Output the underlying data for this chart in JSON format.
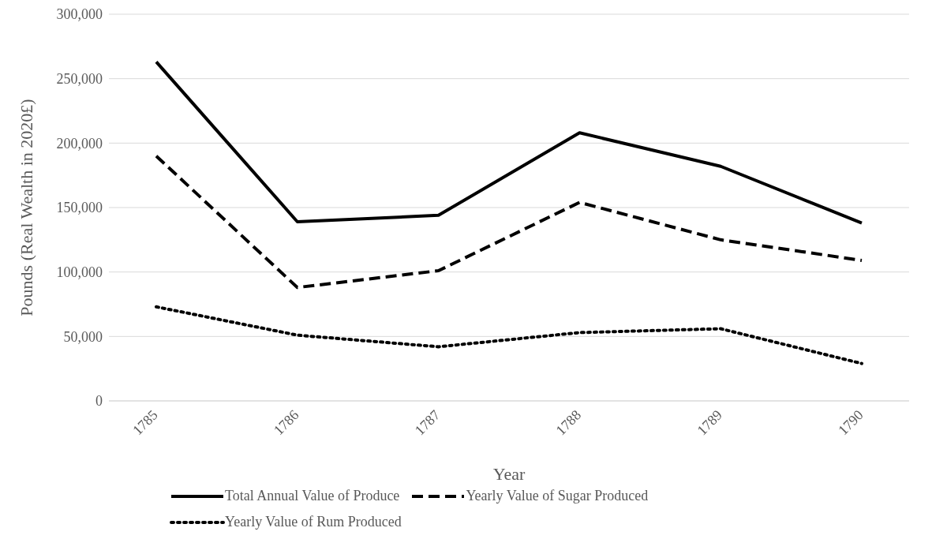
{
  "chart_data": {
    "type": "line",
    "xlabel": "Year",
    "ylabel": "Pounds (Real Wealth in 2020£)",
    "categories": [
      "1785",
      "1786",
      "1787",
      "1788",
      "1789",
      "1790"
    ],
    "series": [
      {
        "name": "Total Annual Value of Produce",
        "color": "#000000",
        "line_style": "solid",
        "values": [
          263000,
          139000,
          144000,
          208000,
          182000,
          138000
        ]
      },
      {
        "name": "Yearly Value of Sugar Produced",
        "color": "#000000",
        "line_style": "dashed",
        "values": [
          190000,
          88000,
          101000,
          154000,
          125000,
          109000
        ]
      },
      {
        "name": "Yearly Value of Rum Produced",
        "color": "#000000",
        "line_style": "dotted",
        "values": [
          73000,
          51000,
          42000,
          53000,
          56000,
          29000
        ]
      }
    ],
    "ylim": [
      0,
      300000
    ],
    "yticks": [
      0,
      {
        "value": 50000,
        "label": "50,000"
      },
      {
        "value": 100000,
        "label": "100,000"
      },
      {
        "value": 150000,
        "label": "150,000"
      },
      {
        "value": 200000,
        "label": "200,000"
      },
      {
        "value": 250000,
        "label": "250,000"
      },
      {
        "value": 300000,
        "label": "300,000"
      }
    ],
    "grid": "y",
    "legend": "bottom",
    "marker": "none"
  }
}
